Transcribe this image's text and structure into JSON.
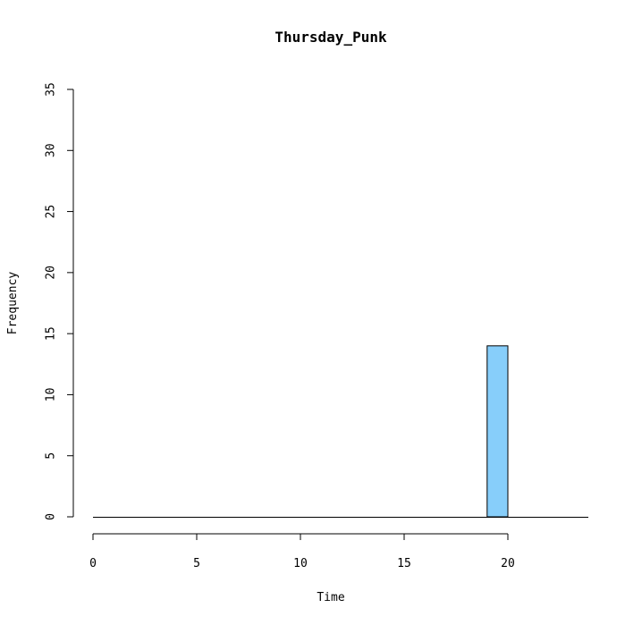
{
  "chart_data": {
    "type": "bar",
    "title": "Thursday_Punk",
    "xlabel": "Time",
    "ylabel": "Frequency",
    "xlim": [
      0,
      24
    ],
    "ylim": [
      0,
      35
    ],
    "x_ticks": [
      0,
      5,
      10,
      15,
      20
    ],
    "y_ticks": [
      0,
      5,
      10,
      15,
      20,
      25,
      30,
      35
    ],
    "bin_width": 1,
    "bins": [
      {
        "start": 0,
        "end": 1,
        "value": 0
      },
      {
        "start": 1,
        "end": 2,
        "value": 0
      },
      {
        "start": 2,
        "end": 3,
        "value": 0
      },
      {
        "start": 3,
        "end": 4,
        "value": 0
      },
      {
        "start": 4,
        "end": 5,
        "value": 0
      },
      {
        "start": 5,
        "end": 6,
        "value": 0
      },
      {
        "start": 6,
        "end": 7,
        "value": 0
      },
      {
        "start": 7,
        "end": 8,
        "value": 0
      },
      {
        "start": 8,
        "end": 9,
        "value": 0
      },
      {
        "start": 9,
        "end": 10,
        "value": 0
      },
      {
        "start": 10,
        "end": 11,
        "value": 0
      },
      {
        "start": 11,
        "end": 12,
        "value": 0
      },
      {
        "start": 12,
        "end": 13,
        "value": 0
      },
      {
        "start": 13,
        "end": 14,
        "value": 0
      },
      {
        "start": 14,
        "end": 15,
        "value": 0
      },
      {
        "start": 15,
        "end": 16,
        "value": 0
      },
      {
        "start": 16,
        "end": 17,
        "value": 0
      },
      {
        "start": 17,
        "end": 18,
        "value": 0
      },
      {
        "start": 18,
        "end": 19,
        "value": 0
      },
      {
        "start": 19,
        "end": 20,
        "value": 14
      },
      {
        "start": 20,
        "end": 21,
        "value": 0
      },
      {
        "start": 21,
        "end": 22,
        "value": 0
      },
      {
        "start": 22,
        "end": 23,
        "value": 0
      },
      {
        "start": 23,
        "end": 24,
        "value": 0
      }
    ],
    "bar_color": "#87CEFA",
    "bar_border_color": "#000000",
    "grid": false,
    "legend": "none"
  }
}
